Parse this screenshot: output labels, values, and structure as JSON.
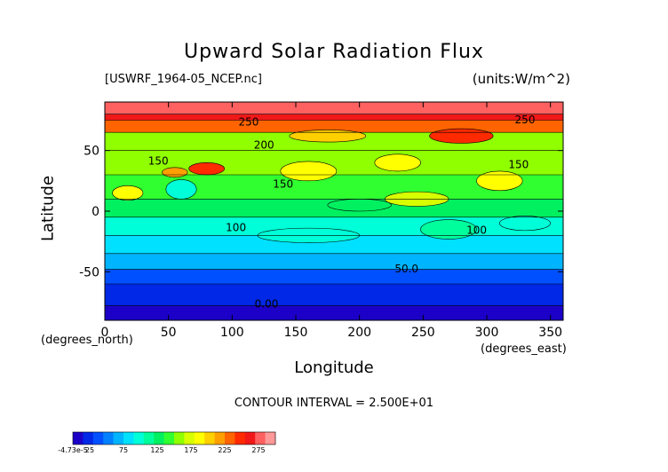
{
  "chart_data": {
    "type": "heatmap",
    "title": "Upward Solar Radiation Flux",
    "file_label": "[USWRF_1964-05_NCEP.nc]",
    "units_label": "(units:W/m^2)",
    "xlabel": "Longitude",
    "ylabel": "Latitude",
    "x_unit_left": "(degrees_north)",
    "x_unit_right": "(degrees_east)",
    "contour_note": "CONTOUR INTERVAL = 2.500E+01",
    "xlim": [
      0,
      360
    ],
    "ylim": [
      -90,
      90
    ],
    "x_ticks": [
      "0",
      "50",
      "100",
      "150",
      "200",
      "250",
      "300",
      "350"
    ],
    "x_tick_values": [
      0,
      50,
      100,
      150,
      200,
      250,
      300,
      350
    ],
    "y_ticks": [
      "50",
      "0",
      "-50"
    ],
    "y_tick_values": [
      50,
      0,
      -50
    ],
    "contour_labels": [
      {
        "text": "250",
        "lon": 113,
        "lat": 73
      },
      {
        "text": "250",
        "lon": 330,
        "lat": 75
      },
      {
        "text": "200",
        "lon": 125,
        "lat": 54
      },
      {
        "text": "150",
        "lon": 42,
        "lat": 41
      },
      {
        "text": "150",
        "lon": 140,
        "lat": 22
      },
      {
        "text": "150",
        "lon": 325,
        "lat": 38
      },
      {
        "text": "100",
        "lon": 103,
        "lat": -14
      },
      {
        "text": "100",
        "lon": 292,
        "lat": -16
      },
      {
        "text": "50.0",
        "lon": 237,
        "lat": -48
      },
      {
        "text": "0.00",
        "lon": 127,
        "lat": -77
      }
    ],
    "lat_bands": [
      {
        "lat_top": 90,
        "lat_bottom": 80,
        "value": 275
      },
      {
        "lat_top": 80,
        "lat_bottom": 75,
        "value": 255
      },
      {
        "lat_top": 75,
        "lat_bottom": 65,
        "value": 230
      },
      {
        "lat_top": 65,
        "lat_bottom": 50,
        "value": 160
      },
      {
        "lat_top": 50,
        "lat_bottom": 30,
        "value": 155
      },
      {
        "lat_top": 30,
        "lat_bottom": 10,
        "value": 145
      },
      {
        "lat_top": 10,
        "lat_bottom": -5,
        "value": 125
      },
      {
        "lat_top": -5,
        "lat_bottom": -20,
        "value": 100
      },
      {
        "lat_top": -20,
        "lat_bottom": -35,
        "value": 85
      },
      {
        "lat_top": -35,
        "lat_bottom": -48,
        "value": 65
      },
      {
        "lat_top": -48,
        "lat_bottom": -60,
        "value": 35
      },
      {
        "lat_top": -60,
        "lat_bottom": -78,
        "value": 15
      },
      {
        "lat_top": -78,
        "lat_bottom": -90,
        "value": -5
      }
    ],
    "patches": [
      {
        "lon": 80,
        "lat": 35,
        "rlon": 14,
        "rlat": 5,
        "value": 240
      },
      {
        "lon": 55,
        "lat": 32,
        "rlon": 10,
        "rlat": 4,
        "value": 210
      },
      {
        "lon": 160,
        "lat": 33,
        "rlon": 22,
        "rlat": 8,
        "value": 190
      },
      {
        "lon": 230,
        "lat": 40,
        "rlon": 18,
        "rlat": 7,
        "value": 185
      },
      {
        "lon": 280,
        "lat": 62,
        "rlon": 25,
        "rlat": 6,
        "value": 250
      },
      {
        "lon": 175,
        "lat": 62,
        "rlon": 30,
        "rlat": 5,
        "value": 205
      },
      {
        "lon": 310,
        "lat": 25,
        "rlon": 18,
        "rlat": 8,
        "value": 190
      },
      {
        "lon": 18,
        "lat": 15,
        "rlon": 12,
        "rlat": 6,
        "value": 185
      },
      {
        "lon": 60,
        "lat": 18,
        "rlon": 12,
        "rlat": 8,
        "value": 95
      },
      {
        "lon": 245,
        "lat": 10,
        "rlon": 25,
        "rlat": 6,
        "value": 165
      },
      {
        "lon": 200,
        "lat": 5,
        "rlon": 25,
        "rlat": 5,
        "value": 120
      },
      {
        "lon": 270,
        "lat": -15,
        "rlon": 22,
        "rlat": 8,
        "value": 110
      },
      {
        "lon": 160,
        "lat": -20,
        "rlon": 40,
        "rlat": 6,
        "value": 100
      },
      {
        "lon": 330,
        "lat": -10,
        "rlon": 20,
        "rlat": 6,
        "value": 95
      }
    ],
    "colorbar": {
      "min_label": "-4.73e-5",
      "tick_labels": [
        "25",
        "75",
        "125",
        "175",
        "225",
        "275"
      ],
      "tick_values": [
        25,
        75,
        125,
        175,
        225,
        275
      ],
      "range": [
        0,
        300
      ],
      "colors": [
        "#1c00c8",
        "#0028e6",
        "#0050ff",
        "#0080ff",
        "#00b4ff",
        "#00e0ff",
        "#00ffd8",
        "#00ff9c",
        "#00f060",
        "#30ff30",
        "#90ff00",
        "#d8ff00",
        "#ffff00",
        "#ffd000",
        "#ffa000",
        "#ff6400",
        "#ff2a00",
        "#f01818",
        "#ff6060",
        "#ff9898"
      ]
    }
  }
}
